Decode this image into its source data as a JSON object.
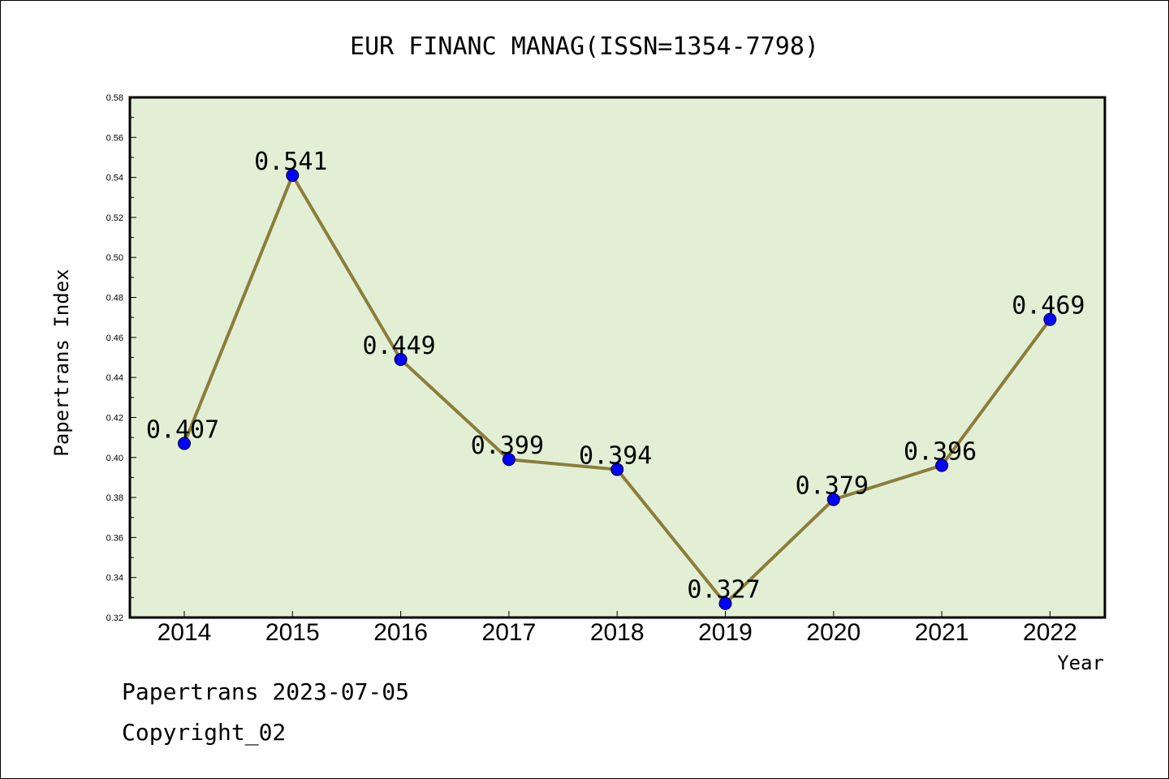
{
  "chart_data": {
    "type": "line",
    "title": "EUR FINANC MANAG(ISSN=1354-7798)",
    "xlabel": "Year",
    "ylabel": "Papertrans Index",
    "categories": [
      "2014",
      "2015",
      "2016",
      "2017",
      "2018",
      "2019",
      "2020",
      "2021",
      "2022"
    ],
    "values": [
      0.407,
      0.541,
      0.449,
      0.399,
      0.394,
      0.327,
      0.379,
      0.396,
      0.469
    ],
    "data_labels": [
      "0.407",
      "0.541",
      "0.449",
      "0.399",
      "0.394",
      "0.327",
      "0.379",
      "0.396",
      "0.469"
    ],
    "ylim": [
      0.32,
      0.58
    ],
    "yticks": [
      "0.32",
      "0.34",
      "0.36",
      "0.38",
      "0.40",
      "0.42",
      "0.44",
      "0.46",
      "0.48",
      "0.50",
      "0.52",
      "0.54",
      "0.56",
      "0.58"
    ],
    "grid": false,
    "colors": {
      "plot_bg": "#e2efd5",
      "line": "#8b7d3a",
      "marker": "#0000ff"
    }
  },
  "footer": {
    "date_line": "Papertrans 2023-07-05",
    "copyright": "Copyright_02"
  }
}
